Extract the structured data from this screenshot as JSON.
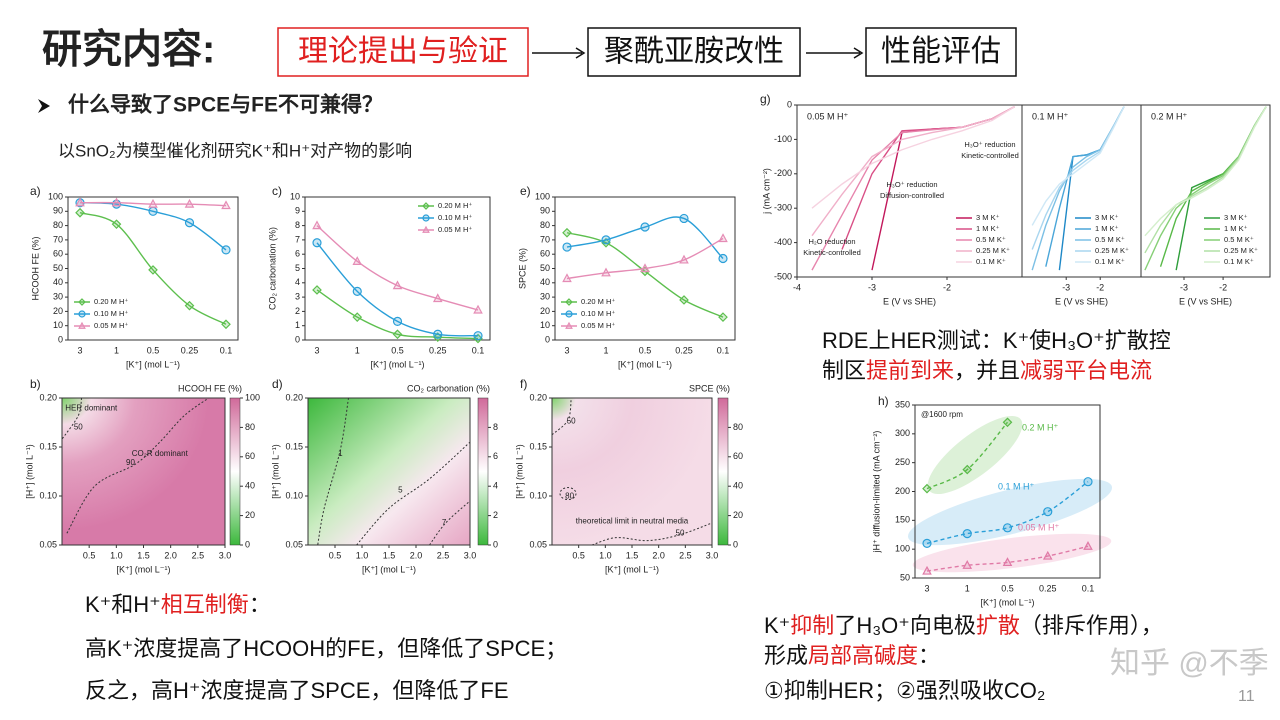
{
  "header": {
    "title": "研究内容:",
    "steps": [
      {
        "text": "理论提出与验证",
        "color": "#e02020"
      },
      {
        "text": "聚酰亚胺改性",
        "color": "#111111"
      },
      {
        "text": "性能评估",
        "color": "#111111"
      }
    ]
  },
  "question": "什么导致了SPCE与FE不可兼得？",
  "subtitle": "以SnO₂为模型催化剂研究K⁺和H⁺对产物的影响",
  "rde_text": [
    [
      {
        "text": "RDE上HER测试：K⁺使H₃O⁺扩散控"
      }
    ],
    [
      {
        "text": "制区"
      },
      {
        "text": "提前到来",
        "color": "#e02020"
      },
      {
        "text": "，并且"
      },
      {
        "text": "减弱平台电流",
        "color": "#e02020"
      }
    ]
  ],
  "balance_text": [
    [
      {
        "text": "K⁺和H⁺"
      },
      {
        "text": "相互制衡",
        "color": "#e02020"
      },
      {
        "text": "："
      }
    ],
    [
      {
        "text": "高K⁺浓度提高了HCOOH的FE，但降低了SPCE；"
      }
    ],
    [
      {
        "text": "反之，高H⁺浓度提高了SPCE，但降低了FE"
      }
    ]
  ],
  "mechanism_text": [
    [
      {
        "text": "K⁺"
      },
      {
        "text": "抑制",
        "color": "#e02020"
      },
      {
        "text": "了H₃O⁺向电极"
      },
      {
        "text": "扩散",
        "color": "#e02020"
      },
      {
        "text": "（排斥作用），"
      }
    ],
    [
      {
        "text": "形成"
      },
      {
        "text": "局部高碱度",
        "color": "#e02020"
      },
      {
        "text": "："
      }
    ],
    [
      {
        "text": "①抑制HER；②强烈吸收CO₂"
      }
    ]
  ],
  "watermark": "知乎 @不季",
  "page_number": "11",
  "chart_data": [
    {
      "type": "line",
      "label": "a)",
      "ylabel": "HCOOH FE (%)",
      "xlabel": "[K⁺] (mol L⁻¹)",
      "categories": [
        "3",
        "1",
        "0.5",
        "0.25",
        "0.1"
      ],
      "ylim": [
        0,
        100
      ],
      "yticks": [
        0,
        10,
        20,
        30,
        40,
        50,
        60,
        70,
        80,
        90,
        100
      ],
      "legend": "lower left",
      "series": [
        {
          "name": "0.20 M H⁺",
          "color": "#5dbf4e",
          "marker": "diamond",
          "values": [
            89,
            81,
            49,
            24,
            11
          ]
        },
        {
          "name": "0.10 M H⁺",
          "color": "#2a9fd8",
          "marker": "circle",
          "values": [
            96,
            95,
            90,
            82,
            63
          ]
        },
        {
          "name": "0.05 M H⁺",
          "color": "#e58cb5",
          "marker": "triangle",
          "values": [
            96,
            96,
            95,
            95,
            94
          ]
        }
      ]
    },
    {
      "type": "line",
      "label": "c)",
      "ylabel": "CO₂ carbonation (%)",
      "xlabel": "[K⁺] (mol L⁻¹)",
      "categories": [
        "3",
        "1",
        "0.5",
        "0.25",
        "0.1"
      ],
      "ylim": [
        0,
        10
      ],
      "yticks": [
        0,
        1,
        2,
        3,
        4,
        5,
        6,
        7,
        8,
        9,
        10
      ],
      "legend": "upper right",
      "series": [
        {
          "name": "0.20 M H⁺",
          "color": "#5dbf4e",
          "marker": "diamond",
          "values": [
            3.5,
            1.6,
            0.4,
            0.2,
            0.1
          ]
        },
        {
          "name": "0.10 M H⁺",
          "color": "#2a9fd8",
          "marker": "circle",
          "values": [
            6.8,
            3.4,
            1.3,
            0.4,
            0.3
          ]
        },
        {
          "name": "0.05 M H⁺",
          "color": "#e58cb5",
          "marker": "triangle",
          "values": [
            8.0,
            5.5,
            3.8,
            2.9,
            2.1
          ]
        }
      ]
    },
    {
      "type": "line",
      "label": "e)",
      "ylabel": "SPCE (%)",
      "xlabel": "[K⁺] (mol L⁻¹)",
      "categories": [
        "3",
        "1",
        "0.5",
        "0.25",
        "0.1"
      ],
      "ylim": [
        0,
        100
      ],
      "yticks": [
        0,
        10,
        20,
        30,
        40,
        50,
        60,
        70,
        80,
        90,
        100
      ],
      "legend": "lower left",
      "series": [
        {
          "name": "0.20 M H⁺",
          "color": "#5dbf4e",
          "marker": "diamond",
          "values": [
            75,
            68,
            48,
            28,
            16
          ]
        },
        {
          "name": "0.10 M H⁺",
          "color": "#2a9fd8",
          "marker": "circle",
          "values": [
            65,
            70,
            79,
            85,
            57
          ]
        },
        {
          "name": "0.05 M H⁺",
          "color": "#e58cb5",
          "marker": "triangle",
          "values": [
            43,
            47,
            50,
            56,
            71
          ]
        }
      ]
    },
    {
      "type": "contour",
      "label": "b)",
      "colorbar_title": "HCOOH FE (%)",
      "xlabel": "[K⁺] (mol L⁻¹)",
      "ylabel": "[H⁺] (mol L⁻¹)",
      "xlim": [
        0,
        3
      ],
      "xticks": [
        0.5,
        {
          "value": 1,
          "label": "1.0"
        },
        1.5,
        {
          "value": 2,
          "label": "2.0"
        },
        2.5,
        {
          "value": 3,
          "label": "3.0"
        }
      ],
      "ylim": [
        0.05,
        0.2
      ],
      "yticks": [
        0.05,
        {
          "value": 0.1,
          "label": "0.10"
        },
        0.15,
        {
          "value": 0.2,
          "label": "0.20"
        }
      ],
      "clim": [
        0,
        100
      ],
      "cticks": [
        0,
        20,
        40,
        60,
        80,
        100
      ],
      "contour_levels": [
        50,
        90
      ],
      "annotations": [
        "HER dominant",
        "CO₂R dominant"
      ]
    },
    {
      "type": "contour",
      "label": "d)",
      "colorbar_title": "CO₂ carbonation (%)",
      "xlabel": "[K⁺] (mol L⁻¹)",
      "ylabel": "[H⁺] (mol L⁻¹)",
      "xlim": [
        0,
        3
      ],
      "xticks": [
        0.5,
        {
          "value": 1,
          "label": "1.0"
        },
        1.5,
        {
          "value": 2,
          "label": "2.0"
        },
        2.5,
        {
          "value": 3,
          "label": "3.0"
        }
      ],
      "ylim": [
        0.05,
        0.2
      ],
      "yticks": [
        0.05,
        {
          "value": 0.1,
          "label": "0.10"
        },
        0.15,
        {
          "value": 0.2,
          "label": "0.20"
        }
      ],
      "clim": [
        0,
        10
      ],
      "cticks": [
        0,
        2,
        4,
        6,
        8
      ],
      "contour_levels": [
        1,
        5,
        7
      ],
      "annotations": []
    },
    {
      "type": "contour",
      "label": "f)",
      "colorbar_title": "SPCE (%)",
      "xlabel": "[K⁺] (mol L⁻¹)",
      "ylabel": "[H⁺] (mol L⁻¹)",
      "xlim": [
        0,
        3
      ],
      "xticks": [
        0.5,
        {
          "value": 1,
          "label": "1.0"
        },
        1.5,
        {
          "value": 2,
          "label": "2.0"
        },
        2.5,
        {
          "value": 3,
          "label": "3.0"
        }
      ],
      "ylim": [
        0.05,
        0.2
      ],
      "yticks": [
        0.05,
        {
          "value": 0.1,
          "label": "0.10"
        },
        0.15,
        {
          "value": 0.2,
          "label": "0.20"
        }
      ],
      "clim": [
        0,
        100
      ],
      "cticks": [
        0,
        20,
        40,
        60,
        80
      ],
      "contour_levels": [
        50,
        80,
        50
      ],
      "annotations": [
        "theoretical limit in neutral media"
      ]
    },
    {
      "type": "line",
      "label": "g)",
      "title": "0.05 M H⁺",
      "ylabel": "j (mA cm⁻²)",
      "xlabel": "E (V vs SHE)",
      "x": [
        -3.8,
        -3.4,
        -3.0,
        -2.6,
        -2.2,
        -1.8,
        -1.4,
        -1.1
      ],
      "xlim": [
        -4,
        -1
      ],
      "xticks": [
        -4,
        -3,
        -2
      ],
      "ylim": [
        -500,
        0
      ],
      "yticks": [
        -500,
        -400,
        -300,
        -200,
        -100,
        0
      ],
      "legend": "lower right",
      "annotations": [
        "H₃O⁺ reduction",
        "Kinetic-controlled",
        "H₃O⁺ reduction",
        "Diffusion-controlled",
        "H₂O reduction",
        "Kinetic-controlled"
      ],
      "series": [
        {
          "name": "3 M K⁺",
          "color": "#c2185b",
          "values": [
            null,
            null,
            -480,
            -80,
            -70,
            -65,
            -40,
            -5
          ]
        },
        {
          "name": "1 M K⁺",
          "color": "#d94f86",
          "values": [
            null,
            -420,
            -200,
            -75,
            -70,
            -65,
            -40,
            -5
          ]
        },
        {
          "name": "0.5 M K⁺",
          "color": "#e785ad",
          "values": [
            -480,
            -320,
            -160,
            -80,
            -72,
            -65,
            -40,
            -5
          ]
        },
        {
          "name": "0.25 M K⁺",
          "color": "#f0b0c9",
          "values": [
            -380,
            -260,
            -150,
            -100,
            -80,
            -65,
            -40,
            -5
          ]
        },
        {
          "name": "0.1 M K⁺",
          "color": "#f6d2e0",
          "values": [
            -300,
            -230,
            -170,
            -130,
            -100,
            -75,
            -45,
            -5
          ]
        }
      ]
    },
    {
      "type": "line",
      "title": "0.1 M H⁺",
      "xlabel": "E (V vs SHE)",
      "x": [
        -4,
        -3.6,
        -3.2,
        -2.8,
        -2.4,
        -2.0,
        -1.6,
        -1.3
      ],
      "xlim": [
        -4.3,
        -0.8
      ],
      "xticks": [
        -3,
        -2
      ],
      "ylim": [
        -500,
        0
      ],
      "legend": "lower right",
      "series": [
        {
          "name": "3 M K⁺",
          "color": "#1e88c7",
          "values": [
            null,
            null,
            -480,
            -150,
            -145,
            -130,
            -60,
            -5
          ]
        },
        {
          "name": "1 M K⁺",
          "color": "#4aa6d9",
          "values": [
            null,
            -470,
            -300,
            -150,
            -145,
            -130,
            -60,
            -5
          ]
        },
        {
          "name": "0.5 M K⁺",
          "color": "#7cc0e5",
          "values": [
            -480,
            -350,
            -250,
            -180,
            -150,
            -130,
            -60,
            -5
          ]
        },
        {
          "name": "0.25 M K⁺",
          "color": "#a9d6ef",
          "values": [
            -420,
            -320,
            -240,
            -190,
            -160,
            -135,
            -60,
            -5
          ]
        },
        {
          "name": "0.1 M K⁺",
          "color": "#cfe8f6",
          "values": [
            -350,
            -280,
            -230,
            -200,
            -170,
            -140,
            -65,
            -5
          ]
        }
      ]
    },
    {
      "type": "line",
      "title": "0.2 M H⁺",
      "xlabel": "E (V vs SHE)",
      "x": [
        -4,
        -3.6,
        -3.2,
        -2.8,
        -2.4,
        -2.0,
        -1.6,
        -1.2,
        -0.9
      ],
      "xlim": [
        -4.1,
        -0.8
      ],
      "xticks": [
        -3,
        -2
      ],
      "ylim": [
        -500,
        0
      ],
      "legend": "lower right",
      "series": [
        {
          "name": "3 M K⁺",
          "color": "#2e9e3a",
          "values": [
            null,
            null,
            -480,
            -240,
            -220,
            -200,
            -150,
            -60,
            -5
          ]
        },
        {
          "name": "1 M K⁺",
          "color": "#58b947",
          "values": [
            null,
            -470,
            -330,
            -250,
            -225,
            -200,
            -150,
            -60,
            -5
          ]
        },
        {
          "name": "0.5 M K⁺",
          "color": "#86cf76",
          "values": [
            -480,
            -380,
            -300,
            -260,
            -230,
            -205,
            -150,
            -60,
            -5
          ]
        },
        {
          "name": "0.25 M K⁺",
          "color": "#b1e0a5",
          "values": [
            -430,
            -350,
            -290,
            -265,
            -240,
            -210,
            -155,
            -60,
            -5
          ]
        },
        {
          "name": "0.1 M K⁺",
          "color": "#d4efcc",
          "values": [
            -380,
            -330,
            -290,
            -270,
            -245,
            -215,
            -160,
            -65,
            -5
          ]
        }
      ]
    },
    {
      "type": "line",
      "label": "h)",
      "ylabel": "jH⁺ diffusion-limited (mA cm⁻²)",
      "xlabel": "[K⁺] (mol L⁻¹)",
      "annotation": "@1600 rpm",
      "categories": [
        "3",
        "1",
        "0.5",
        "0.25",
        "0.1"
      ],
      "ylim": [
        50,
        350
      ],
      "yticks": [
        50,
        100,
        150,
        200,
        250,
        300,
        350
      ],
      "legend": "inline",
      "line_style": "dashed",
      "series": [
        {
          "name": "0.2 M H⁺",
          "color": "#58b947",
          "marker": "diamond",
          "values": [
            205,
            238,
            320,
            null,
            null
          ]
        },
        {
          "name": "0.1 M H⁺",
          "color": "#2a9fd8",
          "marker": "circle",
          "values": [
            110,
            127,
            137,
            165,
            217
          ]
        },
        {
          "name": "0.05 M H⁺",
          "color": "#e07aa6",
          "marker": "triangle",
          "values": [
            62,
            72,
            77,
            88,
            105
          ]
        }
      ]
    }
  ]
}
